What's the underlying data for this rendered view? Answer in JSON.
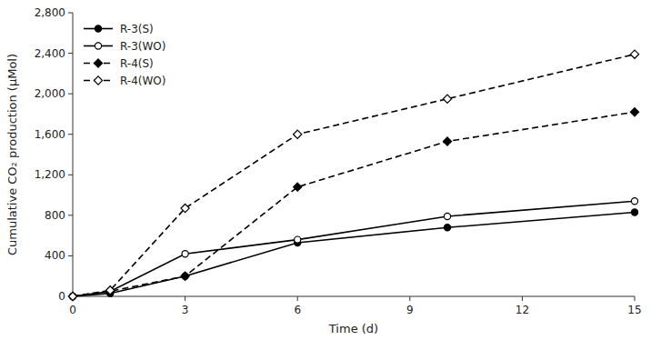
{
  "chart_data": {
    "type": "line",
    "xlabel": "Time (d)",
    "ylabel": "Cumulative CO₂ production (μMol)",
    "x": [
      0,
      1,
      3,
      6,
      10,
      15
    ],
    "series": [
      {
        "name": "R-3(S)",
        "color": "#000000",
        "marker": "circle-filled",
        "line_style": "solid",
        "values": [
          0,
          30,
          200,
          530,
          680,
          830
        ]
      },
      {
        "name": "R-3(WO)",
        "color": "#000000",
        "marker": "circle-open",
        "line_style": "solid",
        "values": [
          0,
          50,
          420,
          560,
          790,
          940
        ]
      },
      {
        "name": "R-4(S)",
        "color": "#000000",
        "marker": "diamond-filled",
        "line_style": "dashed",
        "values": [
          0,
          50,
          200,
          1080,
          1530,
          1820
        ]
      },
      {
        "name": "R-4(WO)",
        "color": "#000000",
        "marker": "diamond-open",
        "line_style": "dashed",
        "values": [
          0,
          60,
          870,
          1600,
          1950,
          2390
        ]
      }
    ],
    "xlim": [
      0,
      15
    ],
    "ylim": [
      0,
      2800
    ],
    "xticks": [
      0,
      3,
      6,
      9,
      12,
      15
    ],
    "yticks": [
      0,
      400,
      800,
      {
        "value": 1200,
        "label": "1,200"
      },
      {
        "value": 1600,
        "label": "1,600"
      },
      {
        "value": 2000,
        "label": "2,000"
      },
      {
        "value": 2400,
        "label": "2,400"
      },
      {
        "value": 2800,
        "label": "2,800"
      }
    ],
    "grid": false,
    "legend": "upper-left"
  }
}
